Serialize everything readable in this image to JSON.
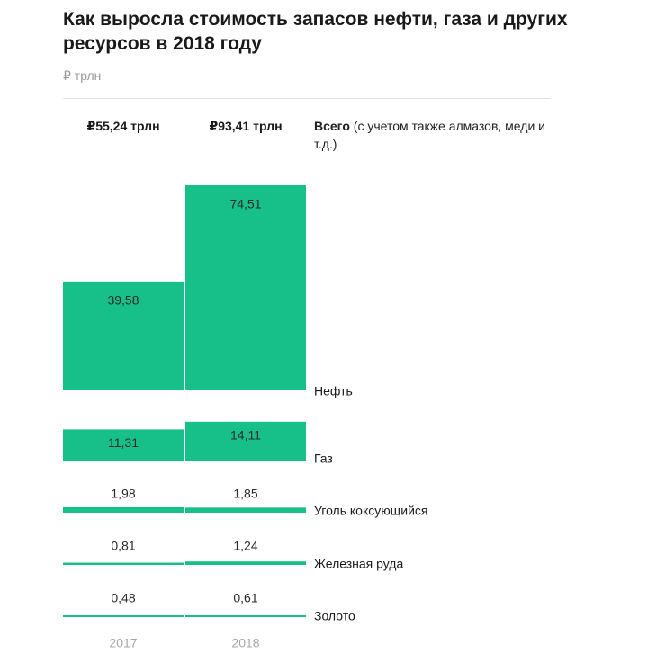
{
  "header": {
    "title": "Как выросла стоимость запасов нефти, газа и других ресурсов в 2018 году",
    "unit": "₽ трлн"
  },
  "totals": {
    "values": [
      "₽55,24 трлн",
      "₽93,41 трлн"
    ],
    "label_bold": "Всего",
    "label_rest": " (с учетом также алмазов, меди и т.д.)"
  },
  "colors": {
    "bar": "#16c088"
  },
  "chart_data": {
    "type": "bar",
    "categories": [
      "2017",
      "2018"
    ],
    "series": [
      {
        "name": "Нефть",
        "values": [
          39.58,
          74.51
        ],
        "labels": [
          "39,58",
          "74,51"
        ]
      },
      {
        "name": "Газ",
        "values": [
          11.31,
          14.11
        ],
        "labels": [
          "11,31",
          "14,11"
        ]
      },
      {
        "name": "Уголь коксующийся",
        "values": [
          1.98,
          1.85
        ],
        "labels": [
          "1,98",
          "1,85"
        ]
      },
      {
        "name": "Железная руда",
        "values": [
          0.81,
          1.24
        ],
        "labels": [
          "0,81",
          "1,24"
        ]
      },
      {
        "name": "Золото",
        "values": [
          0.48,
          0.61
        ],
        "labels": [
          "0,48",
          "0,61"
        ]
      }
    ],
    "totals": [
      55.24,
      93.41
    ],
    "xlabel": "",
    "ylabel": "₽ трлн",
    "grid": false,
    "legend": "right"
  }
}
